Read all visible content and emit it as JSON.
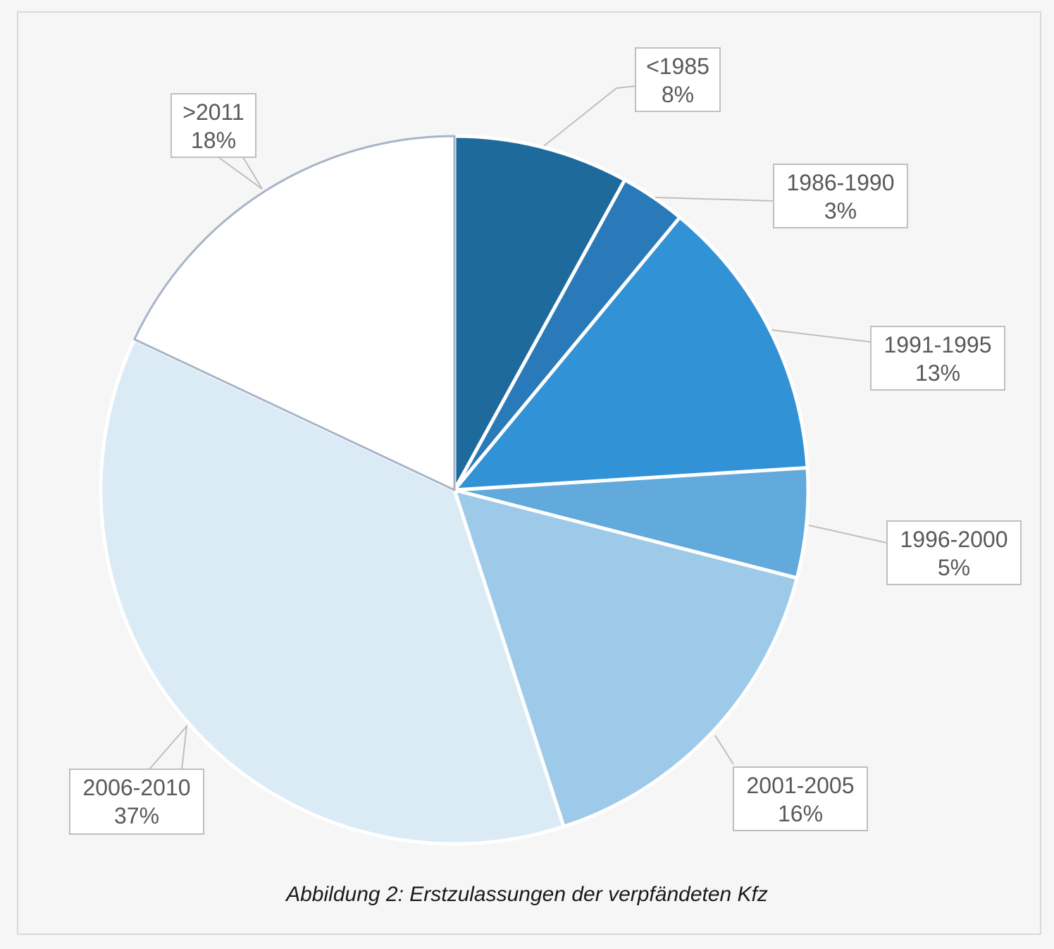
{
  "caption": "Abbildung 2: Erstzulassungen der verpfändeten Kfz",
  "chart_data": {
    "type": "pie",
    "categories": [
      "<1985",
      "1986-1990",
      "1991-1995",
      "1996-2000",
      "2001-2005",
      "2006-2010",
      ">2011"
    ],
    "values": [
      8,
      3,
      13,
      5,
      16,
      37,
      18
    ],
    "labels": [
      "8%",
      "3%",
      "13%",
      "5%",
      "16%",
      "37%",
      "18%"
    ],
    "colors": [
      "#1f6a9c",
      "#2a7ab9",
      "#3292d6",
      "#62a9dc",
      "#9ecae9",
      "#dbebf6",
      "#ffffff"
    ],
    "start_angle": "12 o'clock",
    "direction": "clockwise",
    "legend": "none",
    "data_labels": "callout boxes with category and percent"
  }
}
